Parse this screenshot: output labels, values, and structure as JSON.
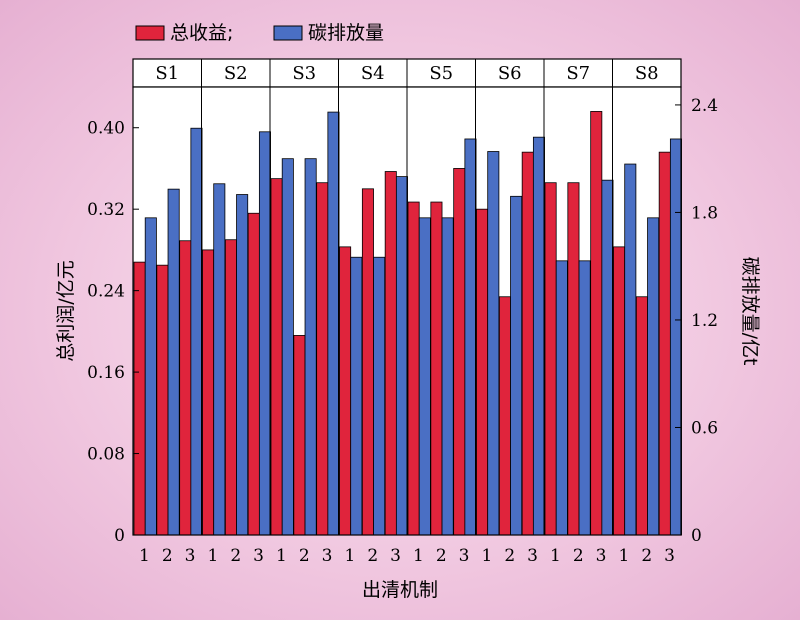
{
  "chart_data": {
    "type": "bar",
    "legend": [
      {
        "label": "总收益;",
        "color": "#e0243c"
      },
      {
        "label": "碳排放量",
        "color": "#4a6fc4"
      }
    ],
    "legend_position": "top-left",
    "groups": [
      "S1",
      "S2",
      "S3",
      "S4",
      "S5",
      "S6",
      "S7",
      "S8"
    ],
    "categories": [
      "1",
      "2",
      "3"
    ],
    "xlabel": "出清机制",
    "ylabel_left": "总利润/亿元",
    "ylabel_right": "碳排放量/亿t",
    "ylim_left": [
      0,
      0.44
    ],
    "yticks_left": [
      "0",
      "0.08",
      "0.16",
      "0.24",
      "0.32",
      "0.40"
    ],
    "ylim_right": [
      0,
      2.5
    ],
    "yticks_right": [
      "0",
      "0.6",
      "1.2",
      "1.8",
      "2.4"
    ],
    "series": [
      {
        "name": "总收益;",
        "axis": "left",
        "color": "#e0243c",
        "values": [
          [
            0.268,
            0.265,
            0.289
          ],
          [
            0.28,
            0.29,
            0.316
          ],
          [
            0.35,
            0.196,
            0.346
          ],
          [
            0.283,
            0.34,
            0.357
          ],
          [
            0.327,
            0.327,
            0.36
          ],
          [
            0.32,
            0.234,
            0.376
          ],
          [
            0.346,
            0.346,
            0.416
          ],
          [
            0.283,
            0.234,
            0.376
          ]
        ]
      },
      {
        "name": "碳排放量",
        "axis": "right",
        "color": "#4a6fc4",
        "values": [
          [
            1.77,
            1.93,
            2.27
          ],
          [
            1.96,
            1.9,
            2.25
          ],
          [
            2.1,
            2.1,
            2.36
          ],
          [
            1.55,
            1.55,
            2.0
          ],
          [
            1.77,
            1.77,
            2.21
          ],
          [
            2.14,
            1.89,
            2.22
          ],
          [
            1.53,
            1.53,
            1.98
          ],
          [
            2.07,
            1.77,
            2.21
          ]
        ]
      }
    ],
    "grid": false
  }
}
